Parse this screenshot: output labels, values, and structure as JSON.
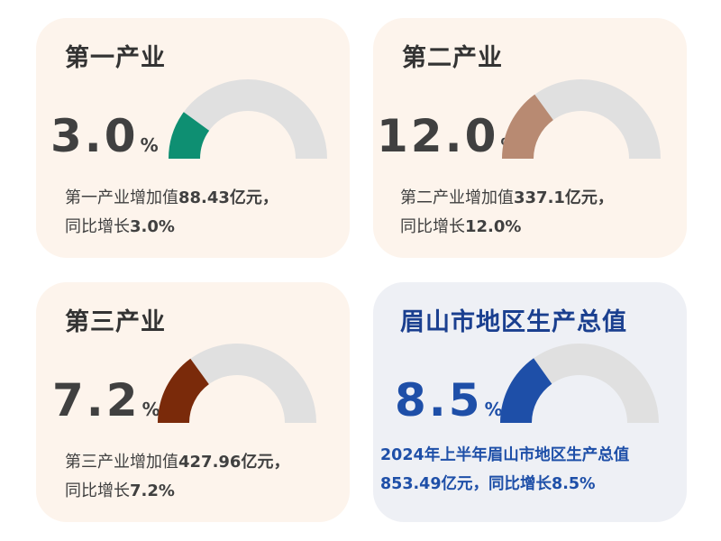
{
  "colors": {
    "track": "#e0e0e0",
    "primary": "#0e8f72",
    "secondary": "#b88a72",
    "tertiary": "#7a2a0a",
    "total": "#1e4fa8"
  },
  "chart_data": [
    {
      "type": "gauge",
      "title": "第一产业",
      "value": 3.0,
      "value_label": "3.0",
      "unit": "%",
      "max": 15,
      "color": "#0e8f72",
      "desc_line1_prefix": "第一产业增加值",
      "desc_line1_value": "88.43亿元，",
      "desc_line2_prefix": "同比增长",
      "desc_line2_value": "3.0%"
    },
    {
      "type": "gauge",
      "title": "第二产业",
      "value": 12.0,
      "value_label": "12.0",
      "unit": "%",
      "max": 40,
      "color": "#b88a72",
      "desc_line1_prefix": "第二产业增加值",
      "desc_line1_value": "337.1亿元，",
      "desc_line2_prefix": "同比增长",
      "desc_line2_value": "12.0%"
    },
    {
      "type": "gauge",
      "title": "第三产业",
      "value": 7.2,
      "value_label": "7.2",
      "unit": "%",
      "max": 24,
      "color": "#7a2a0a",
      "desc_line1_prefix": "第三产业增加值",
      "desc_line1_value": "427.96亿元，",
      "desc_line2_prefix": "同比增长",
      "desc_line2_value": "7.2%"
    },
    {
      "type": "gauge",
      "title": "眉山市地区生产总值",
      "value": 8.5,
      "value_label": "8.5",
      "unit": "%",
      "max": 28,
      "color": "#1e4fa8",
      "desc_line1": "2024年上半年眉山市地区生产总值",
      "desc_line2": "853.49亿元，同比增长8.5%"
    }
  ]
}
